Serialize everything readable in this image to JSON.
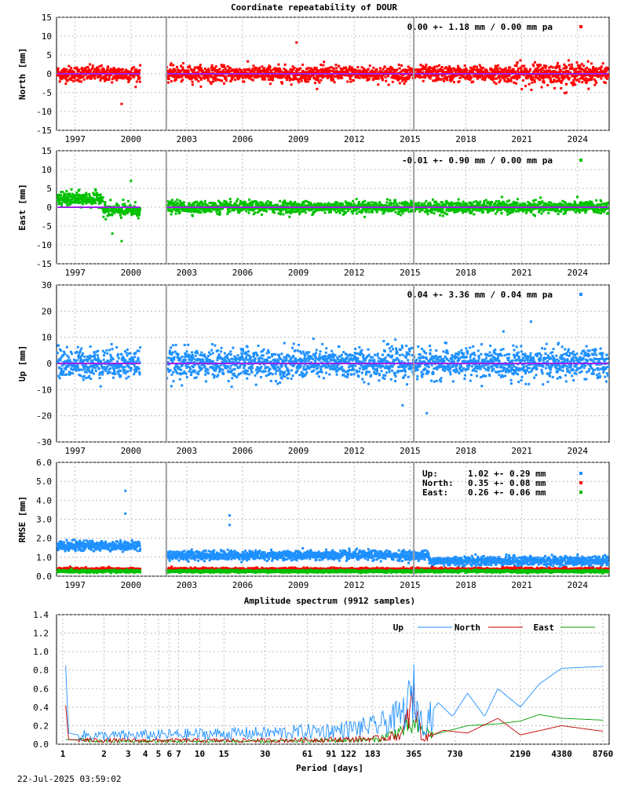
{
  "title": "Coordinate repeatability of DOUR",
  "footer_timestamp": "22-Jul-2025 03:59:02",
  "colors": {
    "north": "#ff0000",
    "east": "#00c000",
    "up": "#1e90ff",
    "trend": "#a020f0",
    "break": "#a0a0a0"
  },
  "chart_data": [
    {
      "type": "scatter",
      "name": "north",
      "ylabel": "North [mm]",
      "ylim": [
        -15,
        15
      ],
      "yticks": [
        -15,
        -10,
        -5,
        0,
        5,
        10,
        15
      ],
      "xlim": [
        1996.0,
        2025.7
      ],
      "xticks": [
        1997,
        2000,
        2003,
        2006,
        2009,
        2012,
        2015,
        2018,
        2021,
        2024
      ],
      "stats_text": "0.00 +- 1.18 mm /  0.00 mm pa",
      "gap": [
        2000.5,
        2001.9
      ],
      "breaks": [
        2001.9,
        2015.2
      ],
      "color": "#ff0000",
      "sigma": 1.18,
      "outliers": [
        [
          1999.5,
          -8
        ],
        [
          2008.9,
          8.3
        ],
        [
          2023.4,
          -5
        ]
      ]
    },
    {
      "type": "scatter",
      "name": "east",
      "ylabel": "East [mm]",
      "ylim": [
        -15,
        15
      ],
      "yticks": [
        -15,
        -10,
        -5,
        0,
        5,
        10,
        15
      ],
      "xlim": [
        1996.0,
        2025.7
      ],
      "xticks": [
        1997,
        2000,
        2003,
        2006,
        2009,
        2012,
        2015,
        2018,
        2021,
        2024
      ],
      "stats_text": "-0.01 +- 0.90 mm /  0.00 mm pa",
      "gap": [
        2000.5,
        2001.9
      ],
      "breaks": [
        2001.9,
        2015.2
      ],
      "color": "#00c000",
      "sigma": 0.9,
      "outliers": [
        [
          1999.5,
          -9
        ],
        [
          2000.0,
          7
        ],
        [
          1999.0,
          -7
        ]
      ]
    },
    {
      "type": "scatter",
      "name": "up",
      "ylabel": "Up [mm]",
      "ylim": [
        -30,
        30
      ],
      "yticks": [
        -30,
        -20,
        -10,
        0,
        10,
        20,
        30
      ],
      "xlim": [
        1996.0,
        2025.7
      ],
      "xticks": [
        1997,
        2000,
        2003,
        2006,
        2009,
        2012,
        2015,
        2018,
        2021,
        2024
      ],
      "stats_text": "0.04 +- 3.36 mm /  0.04 mm pa",
      "gap": [
        2000.5,
        2001.9
      ],
      "breaks": [
        2001.9,
        2015.2
      ],
      "color": "#1e90ff",
      "sigma": 3.36,
      "outliers": [
        [
          2015.9,
          -19
        ],
        [
          2014.6,
          -16
        ],
        [
          2021.5,
          16
        ]
      ]
    },
    {
      "type": "scatter",
      "name": "rmse",
      "ylabel": "RMSE [mm]",
      "ylim": [
        0,
        6
      ],
      "yticks": [
        "0.0",
        "1.0",
        "2.0",
        "3.0",
        "4.0",
        "5.0",
        "6.0"
      ],
      "xlim": [
        1996.0,
        2025.7
      ],
      "xticks": [
        1997,
        2000,
        2003,
        2006,
        2009,
        2012,
        2015,
        2018,
        2021,
        2024
      ],
      "gap": [
        2000.5,
        2001.9
      ],
      "breaks": [
        2001.9,
        2015.2
      ],
      "legend": [
        {
          "label": "Up:",
          "value": "1.02 +- 0.29 mm",
          "color": "#1e90ff",
          "mean": 1.02
        },
        {
          "label": "North:",
          "value": "0.35 +- 0.08 mm",
          "color": "#ff0000",
          "mean": 0.35
        },
        {
          "label": "East:",
          "value": "0.26 +- 0.06 mm",
          "color": "#00c000",
          "mean": 0.26
        }
      ],
      "outliers": [
        [
          1999.7,
          4.5
        ],
        [
          1999.7,
          3.3
        ],
        [
          2005.3,
          3.2
        ],
        [
          2005.3,
          2.7
        ]
      ]
    },
    {
      "type": "line",
      "name": "spectrum",
      "title": "Amplitude spectrum (9912 samples)",
      "xlabel": "Period [days]",
      "xscale": "log",
      "xlim": [
        1,
        8760
      ],
      "ylim": [
        0,
        1.4
      ],
      "yticks": [
        "0.0",
        "0.2",
        "0.4",
        "0.6",
        "0.8",
        "1.0",
        "1.2",
        "1.4"
      ],
      "xticks": [
        1,
        2,
        3,
        4,
        5,
        6,
        7,
        10,
        15,
        30,
        61,
        91,
        122,
        183,
        365,
        730,
        2190,
        4380,
        8760
      ],
      "series": [
        {
          "name": "Up",
          "color": "#1e90ff",
          "points": [
            [
              1.05,
              0.85
            ],
            [
              1.1,
              0.12
            ],
            [
              1.3,
              0.1
            ],
            [
              2,
              0.09
            ],
            [
              5,
              0.1
            ],
            [
              10,
              0.11
            ],
            [
              30,
              0.12
            ],
            [
              100,
              0.15
            ],
            [
              200,
              0.2
            ],
            [
              300,
              0.32
            ],
            [
              365,
              0.55
            ],
            [
              420,
              0.2
            ],
            [
              550,
              0.45
            ],
            [
              700,
              0.3
            ],
            [
              900,
              0.55
            ],
            [
              1200,
              0.3
            ],
            [
              1500,
              0.6
            ],
            [
              2190,
              0.4
            ],
            [
              3000,
              0.65
            ],
            [
              4380,
              0.82
            ],
            [
              8760,
              0.84
            ]
          ]
        },
        {
          "name": "North",
          "color": "#c00000",
          "points": [
            [
              1.05,
              0.42
            ],
            [
              1.1,
              0.05
            ],
            [
              2,
              0.04
            ],
            [
              10,
              0.04
            ],
            [
              30,
              0.04
            ],
            [
              100,
              0.05
            ],
            [
              200,
              0.06
            ],
            [
              300,
              0.1
            ],
            [
              365,
              0.48
            ],
            [
              420,
              0.05
            ],
            [
              600,
              0.15
            ],
            [
              900,
              0.12
            ],
            [
              1500,
              0.28
            ],
            [
              2190,
              0.1
            ],
            [
              4380,
              0.2
            ],
            [
              8760,
              0.14
            ]
          ]
        },
        {
          "name": "East",
          "color": "#00a000",
          "points": [
            [
              1.05,
              0.05
            ],
            [
              2,
              0.03
            ],
            [
              10,
              0.03
            ],
            [
              30,
              0.03
            ],
            [
              100,
              0.04
            ],
            [
              200,
              0.05
            ],
            [
              365,
              0.2
            ],
            [
              500,
              0.1
            ],
            [
              900,
              0.2
            ],
            [
              1500,
              0.22
            ],
            [
              2190,
              0.25
            ],
            [
              3000,
              0.32
            ],
            [
              4380,
              0.28
            ],
            [
              8760,
              0.26
            ]
          ]
        }
      ]
    }
  ]
}
